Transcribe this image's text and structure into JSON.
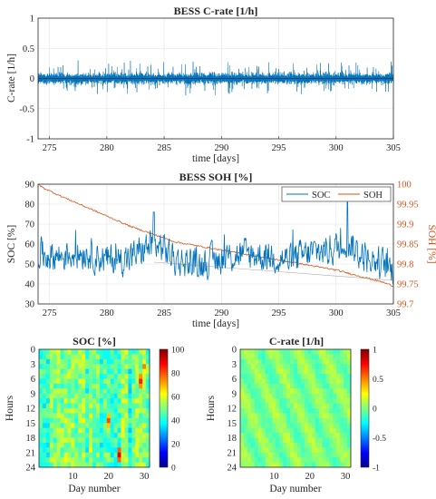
{
  "chart_data": [
    {
      "type": "line",
      "title": "BESS C-rate [1/h]",
      "xlabel": "time [days]",
      "ylabel": "C-rate [1/h]",
      "xlim": [
        274,
        305
      ],
      "ylim": [
        -1,
        1
      ],
      "xticks": [
        "275",
        "280",
        "285",
        "290",
        "295",
        "300",
        "305"
      ],
      "yticks": [
        "-1",
        "-0.5",
        "0",
        "0.5",
        "1"
      ],
      "grid": true,
      "series": [
        {
          "color": "#0072BD",
          "x": [
            274,
            305
          ],
          "y_envelope_typical": [
            -0.1,
            0.1
          ],
          "y_envelope_max": [
            -0.3,
            0.3
          ],
          "note_values": "high-frequency oscillation around 0"
        }
      ]
    },
    {
      "type": "line",
      "title": "BESS SOH [%]",
      "xlabel": "time [days]",
      "ylabel": "SOC [%]",
      "ylabel_right": "SOH [%]",
      "xlim": [
        274,
        305
      ],
      "ylim": [
        30,
        90
      ],
      "ylim_right": [
        99.7,
        100
      ],
      "xticks": [
        "275",
        "280",
        "285",
        "290",
        "295",
        "300",
        "305"
      ],
      "yticks": [
        "30",
        "40",
        "50",
        "60",
        "70",
        "80",
        "90"
      ],
      "yticks_right": [
        "99.7",
        "99.75",
        "99.8",
        "99.85",
        "99.9",
        "99.95",
        "100"
      ],
      "legend": "top-right",
      "grid": true,
      "series": [
        {
          "name": "SOC",
          "axis": "left",
          "color": "#0072BD",
          "x": [
            274,
            276,
            278,
            280,
            282,
            284,
            285,
            286,
            288,
            290,
            292,
            294,
            296,
            298,
            300,
            301,
            302,
            304,
            305
          ],
          "y": [
            55,
            54,
            56,
            52,
            53,
            60,
            58,
            52,
            50,
            53,
            55,
            54,
            52,
            56,
            58,
            62,
            55,
            50,
            47
          ]
        },
        {
          "name": "SOH",
          "axis": "right",
          "color": "#D95319",
          "x": [
            274,
            274.5,
            276,
            278,
            280,
            282,
            284,
            286,
            288,
            290,
            292,
            294,
            296,
            298,
            300,
            302,
            304,
            305
          ],
          "y": [
            100,
            99.99,
            99.97,
            99.945,
            99.92,
            99.895,
            99.875,
            99.855,
            99.845,
            99.835,
            99.825,
            99.815,
            99.805,
            99.795,
            99.785,
            99.77,
            99.755,
            99.745
          ]
        }
      ]
    },
    {
      "type": "heatmap",
      "title": "SOC [%]",
      "xlabel": "Day number",
      "ylabel": "Hours",
      "xticks": [
        "10",
        "20",
        "30"
      ],
      "yticks": [
        "0",
        "3",
        "6",
        "9",
        "12",
        "15",
        "18",
        "21",
        "24"
      ],
      "colorbar_range": [
        0,
        100
      ],
      "colorbar_ticks": [
        "100",
        "80",
        "60",
        "40",
        "20",
        "0"
      ],
      "days": 31,
      "hours": 24,
      "typical_value_range": [
        40,
        70
      ],
      "peak_cells": [
        [
          23,
          21,
          90
        ],
        [
          29,
          6,
          85
        ],
        [
          20,
          14,
          80
        ],
        [
          30,
          3,
          75
        ]
      ]
    },
    {
      "type": "heatmap",
      "title": "C-rate [1/h]",
      "xlabel": "Day number",
      "ylabel": "Hours",
      "xticks": [
        "10",
        "20",
        "30"
      ],
      "yticks": [
        "0",
        "3",
        "6",
        "9",
        "12",
        "15",
        "18",
        "21",
        "24"
      ],
      "colorbar_range": [
        -1,
        1
      ],
      "colorbar_ticks": [
        "1",
        "0.5",
        "0",
        "-0.5",
        "-1"
      ],
      "days": 31,
      "hours": 24,
      "typical_value_range": [
        -0.15,
        0.15
      ]
    }
  ]
}
